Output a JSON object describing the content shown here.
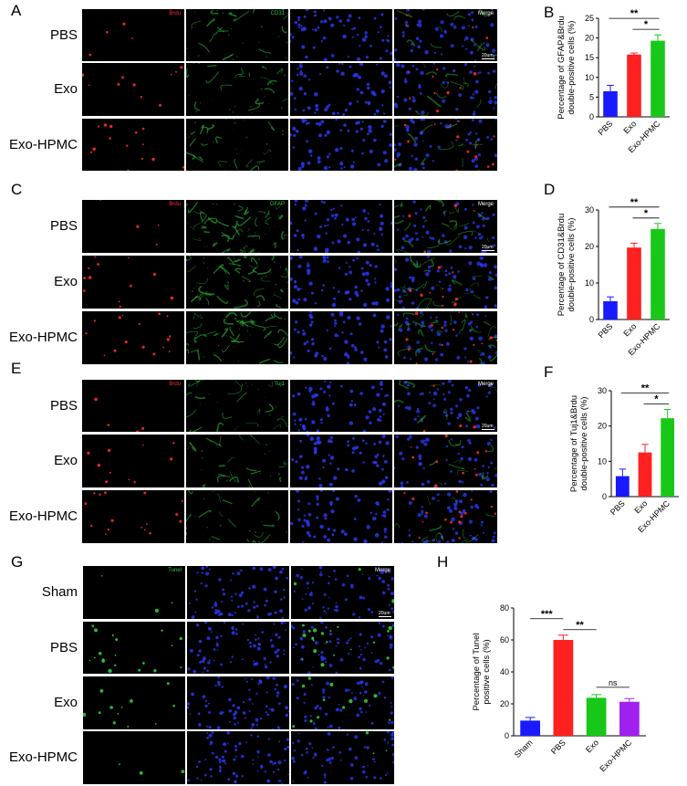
{
  "figure": {
    "blocks": [
      {
        "letter": "A",
        "rows": [
          "PBS",
          "Exo",
          "Exo-HPMC"
        ],
        "channels": [
          "Brdu",
          "CD31",
          "",
          "Merge"
        ],
        "scale": "20um"
      },
      {
        "letter": "C",
        "rows": [
          "PBS",
          "Exo",
          "Exo-HPMC"
        ],
        "channels": [
          "Brdu",
          "GFAP",
          "",
          "Merge"
        ],
        "scale": "20um"
      },
      {
        "letter": "E",
        "rows": [
          "PBS",
          "Exo",
          "Exo-HPMC"
        ],
        "channels": [
          "Brdu",
          "Tuj1",
          "",
          "Merge"
        ],
        "scale": "20um"
      },
      {
        "letter": "G",
        "rows": [
          "Sham",
          "PBS",
          "Exo",
          "Exo-HPMC"
        ],
        "channels": [
          "Tunel",
          "",
          "Merge"
        ],
        "scale": "20um"
      }
    ],
    "colors": {
      "blue": "#1a1aff",
      "red": "#ff2020",
      "green": "#18c818",
      "purple": "#a020f0",
      "nuclei": "#2a3cff",
      "brdu": "#ff2a2a",
      "marker": "#2ecc40"
    }
  },
  "chart_data": [
    {
      "letter": "B",
      "type": "bar",
      "categories": [
        "PBS",
        "Exo",
        "Exo-HPMC"
      ],
      "values": [
        6.5,
        15.8,
        19.3
      ],
      "errors": [
        1.5,
        0.4,
        1.5
      ],
      "ylabel": [
        "Percentage of GFAP&Brdu",
        "double-positive cells (%)"
      ],
      "ylim": [
        0,
        25
      ],
      "yticks": [
        0,
        5,
        10,
        15,
        20,
        25
      ],
      "colors": [
        "#1a1aff",
        "#ff2020",
        "#18c818"
      ],
      "sig": [
        {
          "from": 0,
          "to": 2,
          "label": "**"
        },
        {
          "from": 1,
          "to": 2,
          "label": "*"
        }
      ]
    },
    {
      "letter": "D",
      "type": "bar",
      "categories": [
        "PBS",
        "Exo",
        "Exo-HPMC"
      ],
      "values": [
        5,
        19.7,
        24.8
      ],
      "errors": [
        1.2,
        1.2,
        1.5
      ],
      "ylabel": [
        "Percentage of CD31&Brdu",
        "double-positive cells (%)"
      ],
      "ylim": [
        0,
        30
      ],
      "yticks": [
        0,
        10,
        20,
        30
      ],
      "colors": [
        "#1a1aff",
        "#ff2020",
        "#18c818"
      ],
      "sig": [
        {
          "from": 0,
          "to": 2,
          "label": "**"
        },
        {
          "from": 1,
          "to": 2,
          "label": "*"
        }
      ]
    },
    {
      "letter": "F",
      "type": "bar",
      "categories": [
        "PBS",
        "Exo",
        "Exo-HPMC"
      ],
      "values": [
        5.8,
        12.5,
        22.2
      ],
      "errors": [
        2,
        2.3,
        2.5
      ],
      "ylabel": [
        "Percentage of Tuj1&Brdu",
        "double-positive cells (%)"
      ],
      "ylim": [
        0,
        30
      ],
      "yticks": [
        0,
        10,
        20,
        30
      ],
      "colors": [
        "#1a1aff",
        "#ff2020",
        "#18c818"
      ],
      "sig": [
        {
          "from": 0,
          "to": 2,
          "label": "**"
        },
        {
          "from": 1,
          "to": 2,
          "label": "*"
        }
      ]
    },
    {
      "letter": "H",
      "type": "bar",
      "categories": [
        "Sham",
        "PBS",
        "Exo",
        "Exo-HPMC"
      ],
      "values": [
        9.5,
        60,
        23.8,
        21.3
      ],
      "errors": [
        2,
        3,
        2,
        2
      ],
      "ylabel": [
        "Percentage of Tunel",
        "positive cells (%)"
      ],
      "ylim": [
        0,
        80
      ],
      "yticks": [
        0,
        20,
        40,
        60,
        80
      ],
      "colors": [
        "#1a1aff",
        "#ff2020",
        "#18c818",
        "#a020f0"
      ],
      "sig": [
        {
          "from": 0,
          "to": 1,
          "label": "***"
        },
        {
          "from": 1,
          "to": 2,
          "label": "**"
        },
        {
          "from": 2,
          "to": 3,
          "label": "ns"
        }
      ]
    }
  ]
}
